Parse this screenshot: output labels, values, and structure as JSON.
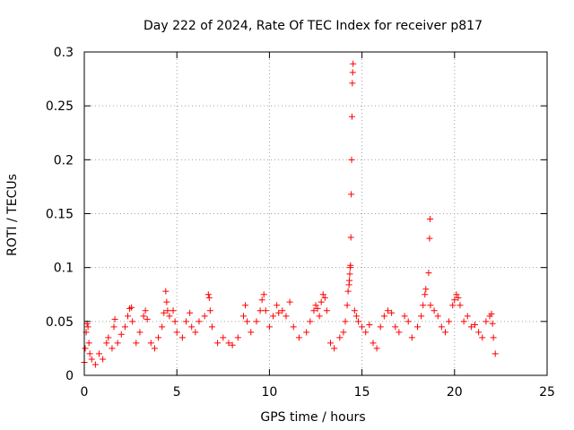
{
  "chart_data": {
    "type": "scatter",
    "title": "Day 222 of 2024, Rate Of TEC Index for receiver p817",
    "xlabel": "GPS time / hours",
    "ylabel": "ROTI / TECUs",
    "xlim": [
      0,
      25
    ],
    "ylim": [
      0,
      0.3
    ],
    "x_ticks": [
      0,
      5,
      10,
      15,
      20,
      25
    ],
    "y_ticks": [
      0,
      0.05,
      0.1,
      0.15,
      0.2,
      0.25,
      0.3
    ],
    "x_tick_labels": [
      "0",
      "5",
      "10",
      "15",
      "20",
      "25"
    ],
    "y_tick_labels": [
      "0",
      "0.05",
      "0.1",
      "0.15",
      "0.2",
      "0.25",
      "0.3"
    ],
    "grid": true,
    "marker": "+",
    "color": "#ff0000",
    "series": [
      {
        "name": "ROTI",
        "points": [
          [
            0.0,
            0.012
          ],
          [
            0.05,
            0.025
          ],
          [
            0.1,
            0.04
          ],
          [
            0.15,
            0.048
          ],
          [
            0.2,
            0.045
          ],
          [
            0.25,
            0.03
          ],
          [
            0.3,
            0.02
          ],
          [
            0.4,
            0.015
          ],
          [
            0.6,
            0.01
          ],
          [
            0.8,
            0.02
          ],
          [
            1.0,
            0.015
          ],
          [
            1.2,
            0.03
          ],
          [
            1.3,
            0.035
          ],
          [
            1.5,
            0.025
          ],
          [
            1.6,
            0.045
          ],
          [
            1.65,
            0.052
          ],
          [
            1.8,
            0.03
          ],
          [
            2.0,
            0.038
          ],
          [
            2.2,
            0.045
          ],
          [
            2.35,
            0.055
          ],
          [
            2.45,
            0.062
          ],
          [
            2.55,
            0.063
          ],
          [
            2.6,
            0.05
          ],
          [
            2.8,
            0.03
          ],
          [
            3.0,
            0.04
          ],
          [
            3.2,
            0.055
          ],
          [
            3.3,
            0.06
          ],
          [
            3.4,
            0.052
          ],
          [
            3.6,
            0.03
          ],
          [
            3.8,
            0.025
          ],
          [
            4.0,
            0.035
          ],
          [
            4.2,
            0.045
          ],
          [
            4.3,
            0.058
          ],
          [
            4.4,
            0.078
          ],
          [
            4.45,
            0.068
          ],
          [
            4.5,
            0.06
          ],
          [
            4.6,
            0.055
          ],
          [
            4.8,
            0.06
          ],
          [
            4.9,
            0.05
          ],
          [
            5.0,
            0.04
          ],
          [
            5.3,
            0.035
          ],
          [
            5.5,
            0.05
          ],
          [
            5.7,
            0.058
          ],
          [
            5.8,
            0.045
          ],
          [
            6.0,
            0.04
          ],
          [
            6.2,
            0.05
          ],
          [
            6.5,
            0.055
          ],
          [
            6.7,
            0.075
          ],
          [
            6.75,
            0.072
          ],
          [
            6.8,
            0.06
          ],
          [
            6.9,
            0.045
          ],
          [
            7.2,
            0.03
          ],
          [
            7.5,
            0.035
          ],
          [
            7.8,
            0.03
          ],
          [
            8.0,
            0.028
          ],
          [
            8.3,
            0.035
          ],
          [
            8.6,
            0.055
          ],
          [
            8.7,
            0.065
          ],
          [
            8.8,
            0.05
          ],
          [
            9.0,
            0.04
          ],
          [
            9.3,
            0.05
          ],
          [
            9.5,
            0.06
          ],
          [
            9.6,
            0.07
          ],
          [
            9.7,
            0.075
          ],
          [
            9.8,
            0.06
          ],
          [
            10.0,
            0.045
          ],
          [
            10.2,
            0.055
          ],
          [
            10.4,
            0.065
          ],
          [
            10.5,
            0.058
          ],
          [
            10.7,
            0.06
          ],
          [
            10.9,
            0.055
          ],
          [
            11.1,
            0.068
          ],
          [
            11.3,
            0.045
          ],
          [
            11.6,
            0.035
          ],
          [
            12.0,
            0.04
          ],
          [
            12.2,
            0.05
          ],
          [
            12.4,
            0.06
          ],
          [
            12.5,
            0.065
          ],
          [
            12.6,
            0.062
          ],
          [
            12.7,
            0.055
          ],
          [
            12.8,
            0.068
          ],
          [
            12.9,
            0.075
          ],
          [
            13.0,
            0.072
          ],
          [
            13.1,
            0.06
          ],
          [
            13.3,
            0.03
          ],
          [
            13.5,
            0.025
          ],
          [
            13.8,
            0.035
          ],
          [
            14.0,
            0.04
          ],
          [
            14.1,
            0.05
          ],
          [
            14.2,
            0.065
          ],
          [
            14.25,
            0.078
          ],
          [
            14.3,
            0.084
          ],
          [
            14.32,
            0.088
          ],
          [
            14.34,
            0.094
          ],
          [
            14.36,
            0.1
          ],
          [
            14.38,
            0.102
          ],
          [
            14.4,
            0.128
          ],
          [
            14.42,
            0.168
          ],
          [
            14.44,
            0.2
          ],
          [
            14.46,
            0.24
          ],
          [
            14.48,
            0.271
          ],
          [
            14.5,
            0.281
          ],
          [
            14.52,
            0.289
          ],
          [
            14.6,
            0.06
          ],
          [
            14.7,
            0.055
          ],
          [
            14.8,
            0.05
          ],
          [
            15.0,
            0.045
          ],
          [
            15.2,
            0.04
          ],
          [
            15.4,
            0.047
          ],
          [
            15.6,
            0.03
          ],
          [
            15.8,
            0.025
          ],
          [
            16.0,
            0.045
          ],
          [
            16.2,
            0.055
          ],
          [
            16.4,
            0.06
          ],
          [
            16.6,
            0.058
          ],
          [
            16.8,
            0.045
          ],
          [
            17.0,
            0.04
          ],
          [
            17.3,
            0.055
          ],
          [
            17.5,
            0.05
          ],
          [
            17.7,
            0.035
          ],
          [
            18.0,
            0.045
          ],
          [
            18.2,
            0.055
          ],
          [
            18.3,
            0.065
          ],
          [
            18.4,
            0.075
          ],
          [
            18.45,
            0.08
          ],
          [
            18.6,
            0.095
          ],
          [
            18.65,
            0.127
          ],
          [
            18.68,
            0.145
          ],
          [
            18.7,
            0.065
          ],
          [
            18.9,
            0.06
          ],
          [
            19.1,
            0.055
          ],
          [
            19.3,
            0.045
          ],
          [
            19.5,
            0.04
          ],
          [
            19.7,
            0.05
          ],
          [
            19.9,
            0.065
          ],
          [
            20.0,
            0.07
          ],
          [
            20.1,
            0.075
          ],
          [
            20.2,
            0.072
          ],
          [
            20.3,
            0.065
          ],
          [
            20.5,
            0.05
          ],
          [
            20.7,
            0.055
          ],
          [
            20.9,
            0.045
          ],
          [
            21.1,
            0.047
          ],
          [
            21.3,
            0.04
          ],
          [
            21.5,
            0.035
          ],
          [
            21.7,
            0.05
          ],
          [
            21.9,
            0.055
          ],
          [
            22.0,
            0.057
          ],
          [
            22.05,
            0.048
          ],
          [
            22.1,
            0.035
          ],
          [
            22.2,
            0.02
          ]
        ]
      }
    ]
  }
}
